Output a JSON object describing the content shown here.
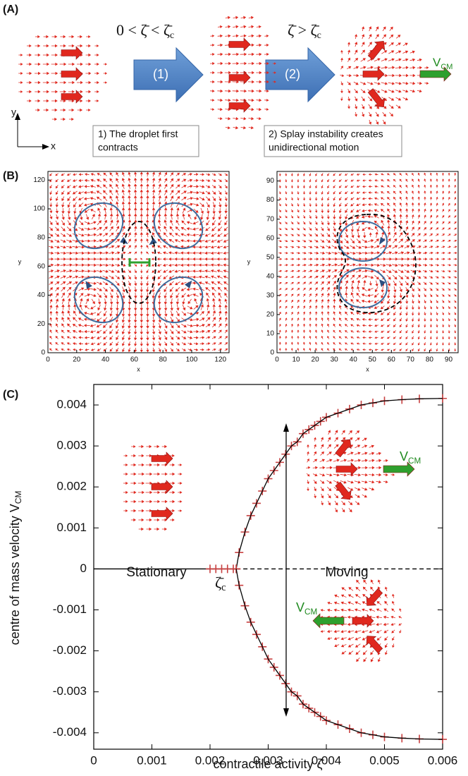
{
  "panel_a": {
    "label": "(A)",
    "condition_1": [
      "0 < ζ̄ < ζ̄",
      "c"
    ],
    "condition_2": [
      "ζ̄ > ζ̄",
      "c"
    ],
    "step_1": "(1)",
    "step_2": "(2)",
    "velocity": [
      "V",
      "CM"
    ],
    "axis_y": "y",
    "axis_x": "x",
    "note_1": [
      "1) The droplet first",
      "contracts"
    ],
    "note_2": [
      "2) Splay instability creates",
      "unidirectional motion"
    ]
  },
  "panel_b": {
    "label": "(B)",
    "plots": [
      {
        "xlabel": "x",
        "ylabel": "y",
        "xlim": [
          0,
          126
        ],
        "ylim": [
          0,
          126
        ],
        "xticks": [
          0,
          20,
          40,
          60,
          80,
          100,
          120
        ],
        "yticks": [
          0,
          20,
          40,
          60,
          80,
          100,
          120
        ]
      },
      {
        "xlabel": "x",
        "ylabel": "y",
        "xlim": [
          0,
          95
        ],
        "ylim": [
          0,
          95
        ],
        "xticks": [
          0,
          10,
          20,
          30,
          40,
          50,
          60,
          70,
          80,
          90
        ],
        "yticks": [
          0,
          10,
          20,
          30,
          40,
          50,
          60,
          70,
          80,
          90
        ]
      }
    ]
  },
  "chart_data": {
    "type": "scatter",
    "label": "(C)",
    "xlabel": "contractile activity ζ̄",
    "ylabel": [
      "centre of mass velocity V",
      "CM"
    ],
    "xlim": [
      0,
      0.006
    ],
    "ylim": [
      -0.0044,
      0.0045
    ],
    "xticks": [
      0,
      0.001,
      0.002,
      0.003,
      0.004,
      0.005,
      0.006
    ],
    "yticks": [
      -0.004,
      -0.003,
      -0.002,
      -0.001,
      0,
      0.001,
      0.002,
      0.003,
      0.004
    ],
    "annotations": {
      "stationary": "Stationary",
      "moving": "Moving",
      "critical": [
        "ζ̄",
        "c"
      ],
      "velocity_top": [
        "V",
        "CM"
      ],
      "velocity_bottom": [
        "V",
        "CM"
      ]
    },
    "lines": [
      {
        "x": [
          0,
          0.00245
        ],
        "values": [
          0,
          0
        ],
        "style": "solid",
        "color": "#000000"
      },
      {
        "x": [
          0.00245,
          0.006
        ],
        "values": [
          0,
          0
        ],
        "style": "dashed",
        "color": "#000000"
      }
    ],
    "series": [
      {
        "color": "#c84040",
        "line_color": "#000000",
        "x": [
          0.002,
          0.0021,
          0.0022,
          0.0023,
          0.0024
        ],
        "values": [
          0,
          0,
          0,
          0,
          0
        ]
      },
      {
        "color": "#c84040",
        "line_color": "#000000",
        "x": [
          0.00245,
          0.0025,
          0.0026,
          0.0027,
          0.0028,
          0.0029,
          0.003,
          0.0031,
          0.0032,
          0.0033,
          0.0034,
          0.0035,
          0.0036,
          0.0037,
          0.0038,
          0.0039,
          0.004,
          0.0042,
          0.0044,
          0.0046,
          0.0048,
          0.005,
          0.0053,
          0.0056,
          0.006
        ],
        "values": [
          0,
          0.0004,
          0.0009,
          0.0013,
          0.0016,
          0.0019,
          0.0022,
          0.0024,
          0.0026,
          0.0028,
          0.003,
          0.0031,
          0.0033,
          0.0034,
          0.0035,
          0.0036,
          0.0037,
          0.0038,
          0.0039,
          0.004,
          0.00405,
          0.0041,
          0.00413,
          0.00415,
          0.00416
        ]
      },
      {
        "color": "#c84040",
        "line_color": "#000000",
        "x": [
          0.00245,
          0.0025,
          0.0026,
          0.0027,
          0.0028,
          0.0029,
          0.003,
          0.0031,
          0.0032,
          0.0033,
          0.0034,
          0.0035,
          0.0036,
          0.0037,
          0.0038,
          0.0039,
          0.004,
          0.0042,
          0.0044,
          0.0046,
          0.0048,
          0.005,
          0.0053,
          0.0056,
          0.006
        ],
        "values": [
          0,
          -0.0004,
          -0.0009,
          -0.0013,
          -0.0016,
          -0.0019,
          -0.0022,
          -0.0024,
          -0.0026,
          -0.0028,
          -0.003,
          -0.0031,
          -0.0033,
          -0.0034,
          -0.0035,
          -0.0036,
          -0.0037,
          -0.0038,
          -0.0039,
          -0.004,
          -0.00405,
          -0.0041,
          -0.00413,
          -0.00415,
          -0.00416
        ]
      }
    ]
  }
}
